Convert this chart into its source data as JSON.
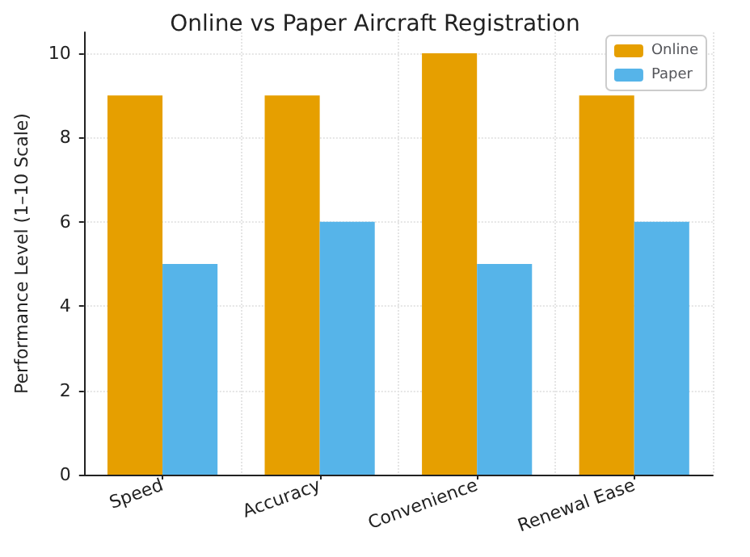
{
  "chart_data": {
    "type": "bar",
    "title": "Online vs Paper Aircraft Registration",
    "ylabel": "Performance Level (1–10 Scale)",
    "categories": [
      "Speed",
      "Accuracy",
      "Convenience",
      "Renewal Ease"
    ],
    "series": [
      {
        "name": "Online",
        "color": "#e69f00",
        "values": [
          9,
          9,
          10,
          9
        ]
      },
      {
        "name": "Paper",
        "color": "#56b4e9",
        "values": [
          5,
          6,
          5,
          6
        ]
      }
    ],
    "ylim": [
      0,
      10.5
    ],
    "yticks": [
      0,
      2,
      4,
      6,
      8,
      10
    ],
    "grid": true,
    "legend": "top right"
  }
}
